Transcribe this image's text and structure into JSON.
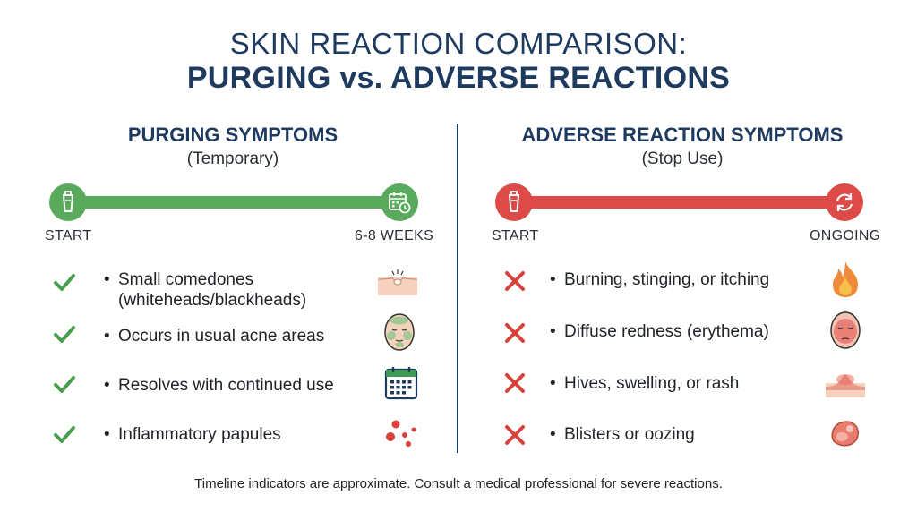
{
  "title": {
    "line1": "SKIN REACTION COMPARISON:",
    "line2": "PURGING vs. ADVERSE REACTIONS"
  },
  "purging": {
    "heading": "PURGING SYMPTOMS",
    "subheading": "(Temporary)",
    "timeline": {
      "start": "START",
      "end": "6-8 WEEKS",
      "start_icon": "tube-icon",
      "end_icon": "calendar-clock-icon",
      "color": "#5aaa5e"
    },
    "items": [
      {
        "text": "Small comedones (whiteheads/blackheads)",
        "line1": "Small comedones",
        "line2": "(whiteheads/blackheads)",
        "icon": "skin-pore-icon"
      },
      {
        "text": "Occurs in usual acne areas",
        "icon": "face-acne-zones-icon"
      },
      {
        "text": "Resolves with continued use",
        "icon": "calendar-icon"
      },
      {
        "text": "Inflammatory papules",
        "icon": "red-dots-icon"
      }
    ]
  },
  "adverse": {
    "heading": "ADVERSE REACTION SYMPTOMS",
    "subheading": "(Stop Use)",
    "timeline": {
      "start": "START",
      "end": "ONGOING",
      "start_icon": "tube-icon",
      "end_icon": "refresh-icon",
      "color": "#dc4b47"
    },
    "items": [
      {
        "text": "Burning, stinging, or itching",
        "icon": "flame-icon"
      },
      {
        "text": "Diffuse redness (erythema)",
        "icon": "red-face-icon"
      },
      {
        "text": "Hives, swelling, or rash",
        "icon": "swollen-skin-icon"
      },
      {
        "text": "Blisters or oozing",
        "icon": "blister-icon"
      }
    ]
  },
  "bullet": "•",
  "footer": "Timeline indicators are approximate. Consult a medical professional for severe reactions."
}
